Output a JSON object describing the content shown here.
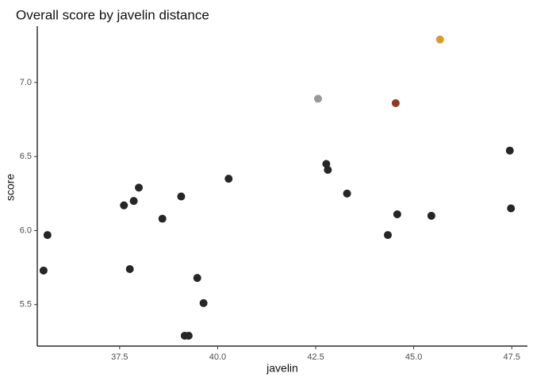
{
  "chart_data": {
    "type": "scatter",
    "title": "Overall score by javelin distance",
    "xlabel": "javelin",
    "ylabel": "score",
    "xlim": [
      35.4,
      47.9
    ],
    "ylim": [
      5.22,
      7.38
    ],
    "xticks": [
      37.5,
      40.0,
      42.5,
      45.0,
      47.5
    ],
    "xtick_labels": [
      "37.5",
      "40.0",
      "42.5",
      "45.0",
      "47.5"
    ],
    "yticks": [
      5.5,
      6.0,
      6.5,
      7.0
    ],
    "ytick_labels": [
      "5.5",
      "6.0",
      "6.5",
      "7.0"
    ],
    "grid": false,
    "points": [
      {
        "x": 35.56,
        "y": 5.73,
        "color": "#262626"
      },
      {
        "x": 35.66,
        "y": 5.97,
        "color": "#262626"
      },
      {
        "x": 37.61,
        "y": 6.17,
        "color": "#262626"
      },
      {
        "x": 37.76,
        "y": 5.74,
        "color": "#262626"
      },
      {
        "x": 37.86,
        "y": 6.2,
        "color": "#262626"
      },
      {
        "x": 37.99,
        "y": 6.29,
        "color": "#262626"
      },
      {
        "x": 38.59,
        "y": 6.08,
        "color": "#262626"
      },
      {
        "x": 39.07,
        "y": 6.23,
        "color": "#262626"
      },
      {
        "x": 39.16,
        "y": 5.29,
        "color": "#262626"
      },
      {
        "x": 39.26,
        "y": 5.29,
        "color": "#262626"
      },
      {
        "x": 39.48,
        "y": 5.68,
        "color": "#262626"
      },
      {
        "x": 39.64,
        "y": 5.51,
        "color": "#262626"
      },
      {
        "x": 40.28,
        "y": 6.35,
        "color": "#262626"
      },
      {
        "x": 42.56,
        "y": 6.89,
        "color": "#999999"
      },
      {
        "x": 42.77,
        "y": 6.45,
        "color": "#262626"
      },
      {
        "x": 42.81,
        "y": 6.41,
        "color": "#262626"
      },
      {
        "x": 43.3,
        "y": 6.25,
        "color": "#262626"
      },
      {
        "x": 44.34,
        "y": 5.97,
        "color": "#262626"
      },
      {
        "x": 44.54,
        "y": 6.86,
        "color": "#8B3E1F"
      },
      {
        "x": 44.58,
        "y": 6.11,
        "color": "#262626"
      },
      {
        "x": 45.45,
        "y": 6.1,
        "color": "#262626"
      },
      {
        "x": 45.67,
        "y": 7.29,
        "color": "#D99B2E"
      },
      {
        "x": 47.45,
        "y": 6.54,
        "color": "#262626"
      },
      {
        "x": 47.48,
        "y": 6.15,
        "color": "#262626"
      }
    ]
  }
}
